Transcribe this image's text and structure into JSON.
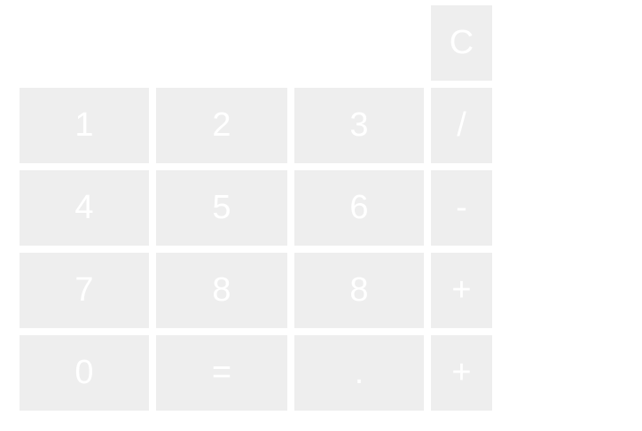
{
  "keypad": {
    "clear": "C",
    "rows": [
      [
        "1",
        "2",
        "3",
        "/"
      ],
      [
        "4",
        "5",
        "6",
        "-"
      ],
      [
        "7",
        "8",
        "8",
        "+"
      ],
      [
        "0",
        "=",
        ".",
        "+"
      ]
    ]
  },
  "colors": {
    "key_background": "#eeeeee",
    "key_text": "#ffffff",
    "page_background": "#ffffff"
  }
}
